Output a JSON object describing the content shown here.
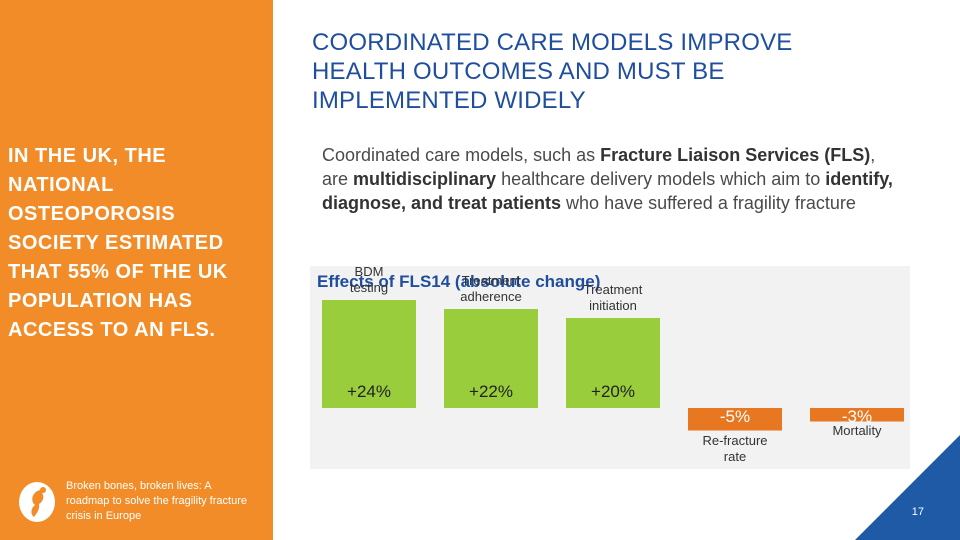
{
  "left_panel": {
    "statement": "IN THE UK, THE\nNATIONAL\nOSTEOPOROSIS\nSOCIETY ESTIMATED\nTHAT 55% OF THE UK\nPOPULATION HAS\nACCESS TO AN FLS.",
    "footer": "Broken bones, broken lives: A\nroadmap to solve the fragility fracture\ncrisis in Europe"
  },
  "title": "COORDINATED CARE MODELS IMPROVE\nHEALTH OUTCOMES AND MUST BE\nIMPLEMENTED WIDELY",
  "intro": {
    "p1": "Coordinated care models, such as ",
    "b1": "Fracture Liaison Services (FLS)",
    "p2": ", are ",
    "b2": "multidisciplinary",
    "p3": " healthcare delivery models which aim to ",
    "b3": "identify, diagnose, and treat patients",
    "p4": " who have suffered a fragility fracture"
  },
  "chart_data": {
    "type": "bar",
    "title": "Effects of FLS14 (absolute change)",
    "categories": [
      "BDM\ntesting",
      "Treatment\nadherence",
      "Treatment\ninitiation",
      "Re-fracture\nrate",
      "Mortality"
    ],
    "values": [
      24,
      22,
      20,
      -5,
      -3
    ],
    "value_labels": [
      "+24%",
      "+22%",
      "+20%",
      "-5%",
      "-3%"
    ],
    "colors": {
      "positive": "#9ACD3C",
      "negative": "#E87722"
    }
  },
  "colors": {
    "orange": "#F28C28",
    "blue": "#1F5AA6",
    "green": "#9ACD3C"
  },
  "page_number": "17"
}
